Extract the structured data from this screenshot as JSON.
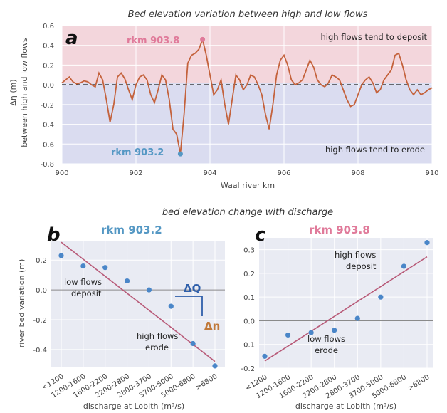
{
  "colors": {
    "deposit_bg": "#f3d6dc",
    "erode_bg": "#dadcf0",
    "panel_bg": "#e9ebf3",
    "line": "#c4623c",
    "fit_line": "#b85a78",
    "point": "#4a86c8",
    "rkm_low": "#5598c4",
    "rkm_high": "#e07a9a",
    "delta_q": "#2f5faa",
    "delta_n": "#c0793a"
  },
  "chart_data": [
    {
      "panel": "a",
      "type": "line",
      "title": "Bed elevation variation between high and low flows",
      "xlabel": "Waal river km",
      "ylabel_line1": "Δη (m)",
      "ylabel_line2": "between high and low flows",
      "xlim": [
        900,
        910
      ],
      "ylim": [
        -0.8,
        0.6
      ],
      "xticks": [
        "900",
        "902",
        "904",
        "906",
        "908",
        "910"
      ],
      "yticks": [
        "0.6",
        "0.4",
        "0.2",
        "0.0",
        "-0.2",
        "-0.4",
        "-0.6",
        "-0.8"
      ],
      "zero_line": "dashed",
      "regions": {
        "deposit_label": "high flows tend to deposit",
        "erode_label": "high flows tend to erode"
      },
      "markers": [
        {
          "label": "rkm 903.8",
          "x": 903.8,
          "y": 0.46
        },
        {
          "label": "rkm 903.2",
          "x": 903.2,
          "y": -0.7
        }
      ],
      "x": [
        900.0,
        900.1,
        900.2,
        900.3,
        900.4,
        900.5,
        900.6,
        900.7,
        900.8,
        900.9,
        901.0,
        901.1,
        901.2,
        901.3,
        901.4,
        901.5,
        901.6,
        901.7,
        901.8,
        901.9,
        902.0,
        902.1,
        902.2,
        902.3,
        902.4,
        902.5,
        902.6,
        902.7,
        902.8,
        902.9,
        903.0,
        903.1,
        903.2,
        903.3,
        903.4,
        903.5,
        903.6,
        903.7,
        903.8,
        903.9,
        904.0,
        904.1,
        904.2,
        904.3,
        904.4,
        904.5,
        904.6,
        904.7,
        904.8,
        904.9,
        905.0,
        905.1,
        905.2,
        905.3,
        905.4,
        905.5,
        905.6,
        905.7,
        905.8,
        905.9,
        906.0,
        906.1,
        906.2,
        906.3,
        906.4,
        906.5,
        906.6,
        906.7,
        906.8,
        906.9,
        907.0,
        907.1,
        907.2,
        907.3,
        907.4,
        907.5,
        907.6,
        907.7,
        907.8,
        907.9,
        908.0,
        908.1,
        908.2,
        908.3,
        908.4,
        908.5,
        908.6,
        908.7,
        908.8,
        908.9,
        909.0,
        909.1,
        909.2,
        909.3,
        909.4,
        909.5,
        909.6,
        909.7,
        909.8,
        909.9,
        910.0
      ],
      "y": [
        0.02,
        0.05,
        0.08,
        0.03,
        0.01,
        0.02,
        0.04,
        0.03,
        0.0,
        -0.02,
        0.12,
        0.05,
        -0.15,
        -0.38,
        -0.2,
        0.08,
        0.12,
        0.06,
        -0.05,
        -0.15,
        0.0,
        0.08,
        0.1,
        0.05,
        -0.1,
        -0.18,
        -0.05,
        0.1,
        0.05,
        -0.15,
        -0.45,
        -0.5,
        -0.7,
        -0.3,
        0.22,
        0.3,
        0.32,
        0.36,
        0.46,
        0.3,
        0.1,
        -0.1,
        -0.05,
        0.05,
        -0.2,
        -0.4,
        -0.15,
        0.1,
        0.05,
        -0.05,
        0.0,
        0.1,
        0.08,
        0.0,
        -0.1,
        -0.3,
        -0.45,
        -0.2,
        0.1,
        0.25,
        0.3,
        0.2,
        0.05,
        0.0,
        0.02,
        0.05,
        0.15,
        0.25,
        0.18,
        0.05,
        0.0,
        -0.02,
        0.02,
        0.1,
        0.08,
        0.05,
        -0.05,
        -0.15,
        -0.22,
        -0.2,
        -0.1,
        0.0,
        0.05,
        0.08,
        0.02,
        -0.08,
        -0.05,
        0.05,
        0.1,
        0.15,
        0.3,
        0.32,
        0.2,
        0.05,
        -0.05,
        -0.1,
        -0.05,
        -0.1,
        -0.08,
        -0.05,
        -0.03
      ]
    },
    {
      "panel": "b",
      "type": "scatter",
      "title": "rkm 903.2",
      "xlabel": "discharge at Lobith (m³/s)",
      "ylabel": "river bed variation (m)",
      "ylim": [
        -0.52,
        0.33
      ],
      "yticks": [
        "0.2",
        "0.0",
        "-0.2",
        "-0.4"
      ],
      "categories": [
        "<1200",
        "1200-1600",
        "1600-2200",
        "2200-2800",
        "2800-3700",
        "3700-5000",
        "5000-6800",
        ">6800"
      ],
      "values": [
        0.23,
        0.16,
        0.15,
        0.06,
        0.0,
        -0.11,
        -0.36,
        -0.51
      ],
      "fit": [
        0.32,
        -0.48
      ],
      "annotations": {
        "upper": [
          "low flows",
          "deposit"
        ],
        "lower": [
          "high flows",
          "erode"
        ],
        "delta_q": "ΔQ",
        "delta_n": "Δn"
      }
    },
    {
      "panel": "c",
      "type": "scatter",
      "title": "rkm 903.8",
      "xlabel": "discharge at Lobith (m³/s)",
      "ylabel": "",
      "ylim": [
        -0.2,
        0.35
      ],
      "yticks": [
        "0.3",
        "0.2",
        "0.1",
        "0.0",
        "-0.1",
        "-0.2"
      ],
      "categories": [
        "<1200",
        "1200-1600",
        "1600-2200",
        "2200-2800",
        "2800-3700",
        "3700-5000",
        "5000-6800",
        ">6800"
      ],
      "values": [
        -0.15,
        -0.06,
        -0.05,
        -0.04,
        0.01,
        0.1,
        0.23,
        0.33
      ],
      "fit": [
        -0.17,
        0.27
      ],
      "annotations": {
        "upper": [
          "high flows",
          "deposit"
        ],
        "lower": [
          "low flows",
          "erode"
        ]
      }
    }
  ],
  "figure": {
    "subtitle_bc": "bed elevation change with discharge",
    "panel_a": "a",
    "panel_b": "b",
    "panel_c": "c"
  }
}
